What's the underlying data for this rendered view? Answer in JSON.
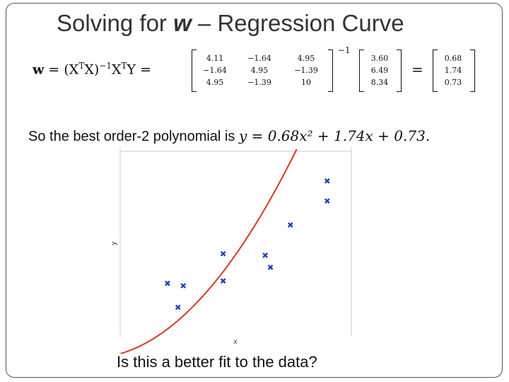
{
  "title": {
    "prefix": "Solving for ",
    "var": "w",
    "suffix": " – Regression Curve"
  },
  "equation": {
    "lhs_bold": "w",
    "lhs_rest": " = (X",
    "sup_T": "T",
    "lhs_mid": "X)",
    "sup_inv": "−1",
    "lhs_tail": "X",
    "lhs_end": "Y =",
    "matrix": [
      [
        "4.11",
        "−1.64",
        "4.95"
      ],
      [
        "−1.64",
        "4.95",
        "−1.39"
      ],
      [
        "4.95",
        "−1.39",
        "10"
      ]
    ],
    "inverse_sup": "−1",
    "vector_y": [
      "3.60",
      "6.49",
      "8.34"
    ],
    "equals": "=",
    "vector_w": [
      "0.68",
      "1.74",
      "0.73"
    ]
  },
  "statement": {
    "text": "So the best order-2 polynomial is ",
    "formula": "y = 0.68x² + 1.74x + 0.73."
  },
  "question": "Is this a better fit to the data?",
  "colors": {
    "curve": "#d23a1c",
    "points": "#1f3fc4",
    "axis": "#cccccc"
  },
  "chart_data": {
    "type": "scatter",
    "xlabel": "x",
    "ylabel": "y",
    "grid": false,
    "points": [
      {
        "x": -0.55,
        "y": 0.55
      },
      {
        "x": -0.45,
        "y": 0.25
      },
      {
        "x": -0.4,
        "y": 0.52
      },
      {
        "x": -0.02,
        "y": 0.92
      },
      {
        "x": -0.02,
        "y": 0.58
      },
      {
        "x": 0.38,
        "y": 0.9
      },
      {
        "x": 0.43,
        "y": 0.75
      },
      {
        "x": 0.62,
        "y": 1.28
      },
      {
        "x": 0.97,
        "y": 1.58
      },
      {
        "x": 0.97,
        "y": 1.83
      }
    ],
    "curve": {
      "a": 0.68,
      "b": 1.74,
      "c": 0.73
    }
  }
}
